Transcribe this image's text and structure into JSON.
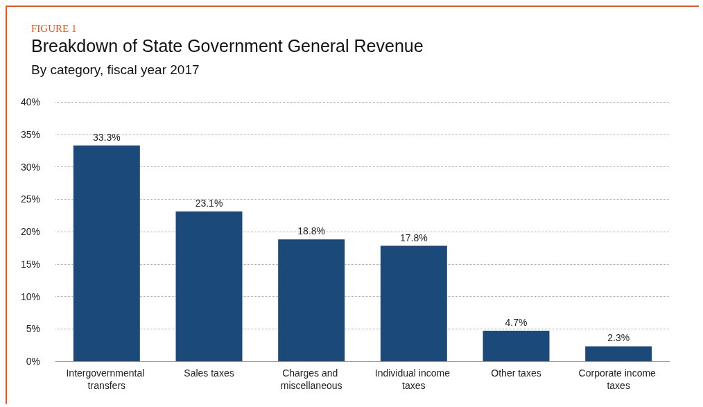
{
  "chart_data": {
    "type": "bar",
    "title": "Breakdown of State Government General Revenue",
    "subtitle": "By category, fiscal year 2017",
    "annotations": [
      "FIGURE 1"
    ],
    "categories": [
      "Intergovernmental transfers",
      "Sales taxes",
      "Charges and miscellaneous",
      "Individual income taxes",
      "Other taxes",
      "Corporate income taxes"
    ],
    "values": [
      33.3,
      23.1,
      18.8,
      17.8,
      4.7,
      2.3
    ],
    "value_labels": [
      "33.3%",
      "23.1%",
      "18.8%",
      "17.8%",
      "4.7%",
      "2.3%"
    ],
    "color": "#1b4a7a",
    "ylim": [
      0,
      40
    ],
    "yticks": [
      {
        "value": 0,
        "label": "0%"
      },
      {
        "value": 5,
        "label": "5%"
      },
      {
        "value": 10,
        "label": "10%"
      },
      {
        "value": 15,
        "label": "15%"
      },
      {
        "value": 20,
        "label": "20%"
      },
      {
        "value": 25,
        "label": "25%"
      },
      {
        "value": 30,
        "label": "30%"
      },
      {
        "value": 35,
        "label": "35%"
      },
      {
        "value": 40,
        "label": "40%"
      }
    ],
    "grid": "y"
  }
}
